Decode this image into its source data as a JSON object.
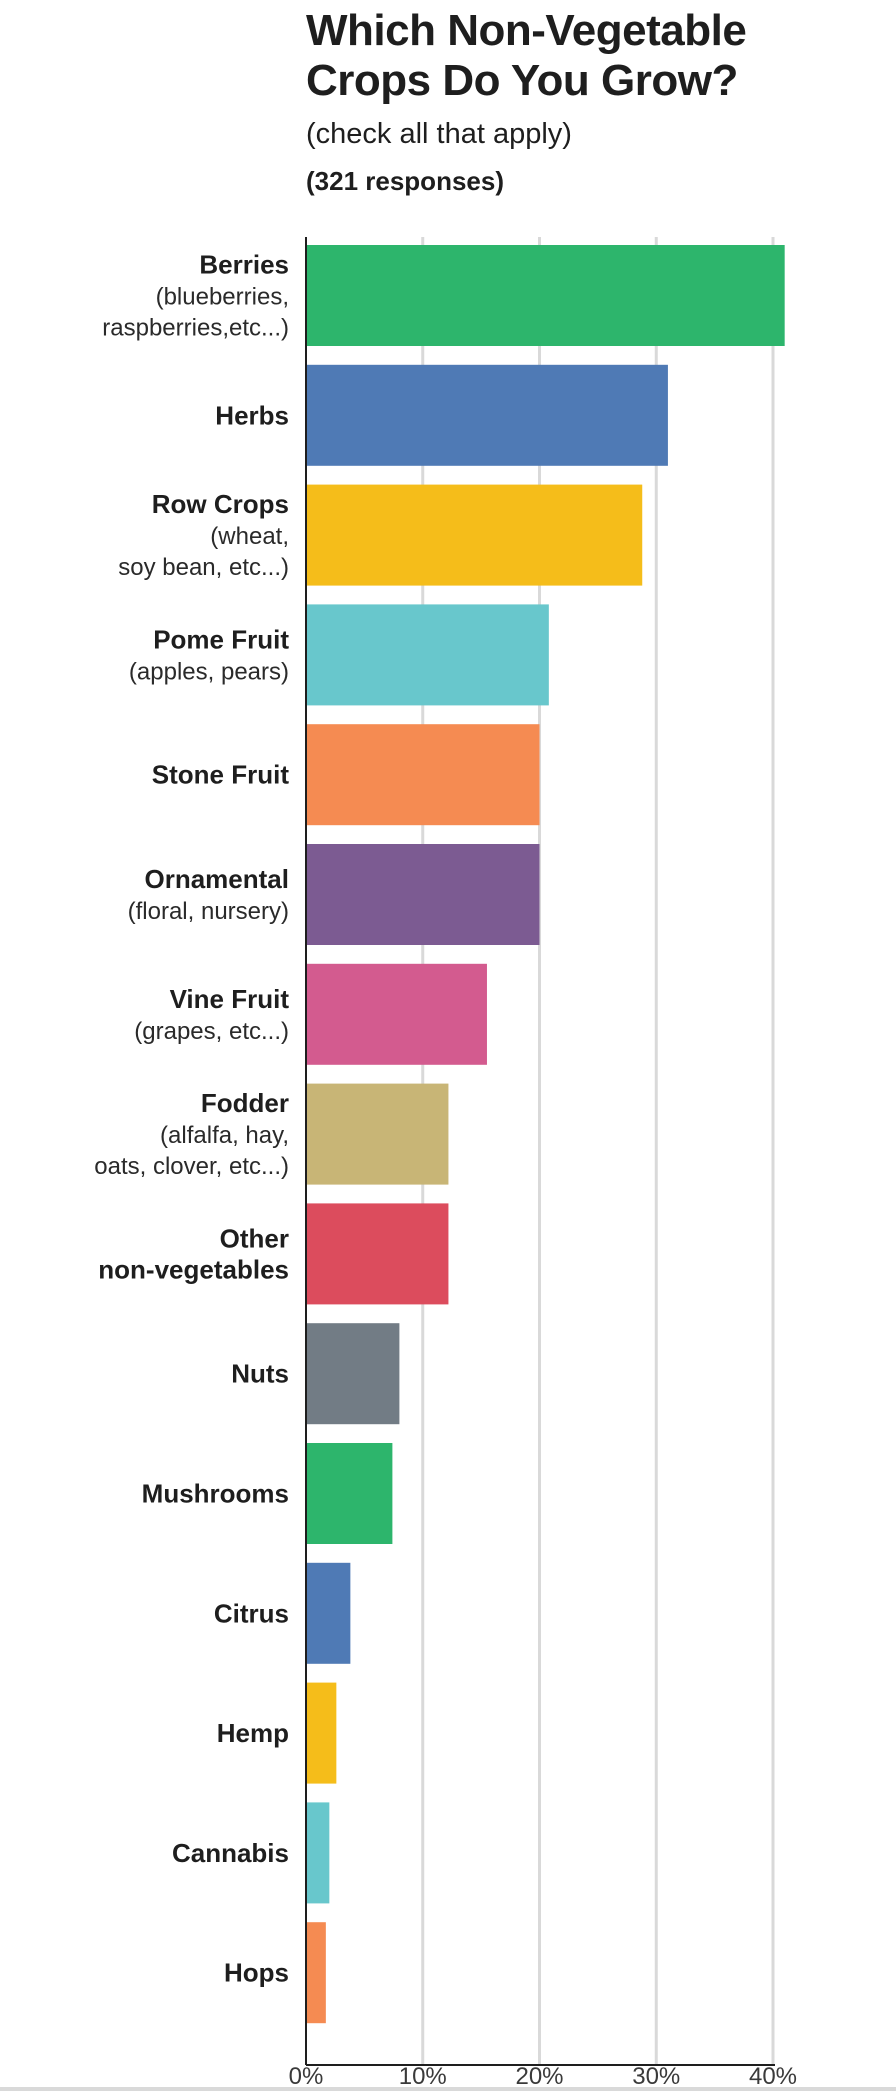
{
  "header": {
    "title": "Which Non-Vegetable\nCrops Do You Grow?",
    "subtitle": "(check all that apply)",
    "responses": "(321 responses)"
  },
  "chart_data": {
    "type": "bar",
    "orientation": "horizontal",
    "title": "Which Non-Vegetable Crops Do You Grow?",
    "subtitle": "(check all that apply)",
    "xlim": [
      0,
      40
    ],
    "xticks": [
      "0%",
      "10%",
      "20%",
      "30%",
      "40%"
    ],
    "grid": true,
    "categories": [
      {
        "name": "Berries",
        "detail": [
          "(blueberries,",
          "raspberries,etc...)"
        ],
        "value": 41.0,
        "color": "#2db56c"
      },
      {
        "name": "Herbs",
        "detail": [],
        "value": 31.0,
        "color": "#4f7ab5"
      },
      {
        "name": "Row Crops",
        "detail": [
          "(wheat,",
          "soy bean, etc...)"
        ],
        "value": 28.8,
        "color": "#f5bd1a"
      },
      {
        "name": "Pome Fruit",
        "detail": [
          "(apples, pears)"
        ],
        "value": 20.8,
        "color": "#68c7cc"
      },
      {
        "name": "Stone Fruit",
        "detail": [],
        "value": 20.0,
        "color": "#f58b52"
      },
      {
        "name": "Ornamental",
        "detail": [
          "(floral, nursery)"
        ],
        "value": 20.0,
        "color": "#7c5b92"
      },
      {
        "name": "Vine Fruit",
        "detail": [
          "(grapes, etc...)"
        ],
        "value": 15.5,
        "color": "#d35b8f"
      },
      {
        "name": "Fodder",
        "detail": [
          "(alfalfa, hay,",
          "oats, clover, etc...)"
        ],
        "value": 12.2,
        "color": "#c8b576"
      },
      {
        "name": "Other",
        "detail": [],
        "name2": "non-vegetables",
        "value": 12.2,
        "color": "#dc4c5d"
      },
      {
        "name": "Nuts",
        "detail": [],
        "value": 8.0,
        "color": "#727c85"
      },
      {
        "name": "Mushrooms",
        "detail": [],
        "value": 7.4,
        "color": "#2db56c"
      },
      {
        "name": "Citrus",
        "detail": [],
        "value": 3.8,
        "color": "#4f7ab5"
      },
      {
        "name": "Hemp",
        "detail": [],
        "value": 2.6,
        "color": "#f5bd1a"
      },
      {
        "name": "Cannabis",
        "detail": [],
        "value": 2.0,
        "color": "#68c7cc"
      },
      {
        "name": "Hops",
        "detail": [],
        "value": 1.7,
        "color": "#f58b52"
      }
    ]
  },
  "colors": {
    "grid": "#d9d9d9",
    "axis": "#1e1e1e"
  }
}
